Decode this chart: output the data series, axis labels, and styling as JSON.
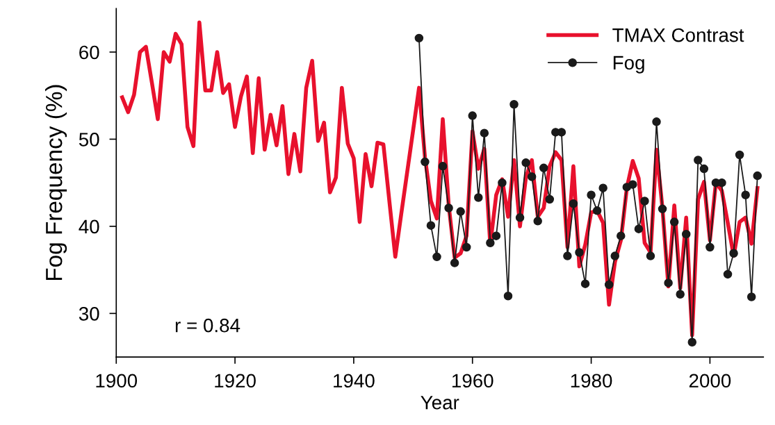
{
  "chart_data": {
    "type": "line",
    "xlabel": "Year",
    "ylabel": "Fog Frequency (%)",
    "xlim": [
      1900,
      2009
    ],
    "xticks": [
      1900,
      1920,
      1940,
      1960,
      1980,
      2000
    ],
    "ylim": [
      25,
      65
    ],
    "yticks": [
      30,
      40,
      50,
      60
    ],
    "legend": "top right",
    "annotations": [
      "r = 0.84"
    ],
    "series": [
      {
        "name": "TMAX Contrast",
        "color": "#e8112d",
        "marker": "none",
        "x": [
          1901,
          1902,
          1903,
          1904,
          1905,
          1906,
          1907,
          1908,
          1909,
          1910,
          1911,
          1912,
          1913,
          1914,
          1915,
          1916,
          1917,
          1918,
          1919,
          1920,
          1921,
          1922,
          1923,
          1924,
          1925,
          1926,
          1927,
          1928,
          1929,
          1930,
          1931,
          1932,
          1933,
          1934,
          1935,
          1936,
          1937,
          1938,
          1939,
          1940,
          1941,
          1942,
          1943,
          1944,
          1945,
          1946,
          1947,
          1948,
          1949,
          1950,
          1951,
          1952,
          1953,
          1954,
          1955,
          1956,
          1957,
          1958,
          1959,
          1960,
          1961,
          1962,
          1963,
          1964,
          1965,
          1966,
          1967,
          1968,
          1969,
          1970,
          1971,
          1972,
          1973,
          1974,
          1975,
          1976,
          1977,
          1978,
          1979,
          1980,
          1981,
          1982,
          1983,
          1984,
          1985,
          1986,
          1987,
          1988,
          1989,
          1990,
          1991,
          1992,
          1993,
          1994,
          1995,
          1996,
          1997,
          1998,
          1999,
          2000,
          2001,
          2002,
          2003,
          2004,
          2005,
          2006,
          2007,
          2008
        ],
        "values": [
          54.8,
          53.1,
          55.1,
          60.0,
          60.6,
          56.5,
          52.3,
          60.0,
          58.9,
          62.1,
          60.9,
          51.4,
          49.2,
          63.4,
          55.6,
          55.6,
          60.0,
          55.3,
          56.3,
          51.4,
          54.9,
          57.2,
          48.4,
          57.0,
          48.8,
          52.8,
          49.3,
          53.8,
          46.0,
          50.6,
          46.3,
          55.9,
          59.0,
          49.8,
          51.9,
          43.9,
          45.6,
          55.9,
          49.5,
          47.8,
          40.5,
          48.3,
          44.6,
          49.6,
          49.4,
          42.9,
          36.5,
          41.4,
          46.2,
          51.0,
          55.9,
          47.9,
          42.9,
          40.9,
          52.3,
          42.4,
          36.4,
          36.9,
          38.9,
          50.9,
          46.6,
          48.9,
          37.9,
          43.6,
          45.4,
          41.1,
          47.6,
          40.0,
          45.6,
          47.6,
          41.1,
          42.1,
          46.9,
          48.5,
          47.6,
          37.6,
          46.9,
          35.4,
          37.9,
          41.6,
          41.8,
          40.4,
          31.0,
          35.9,
          38.4,
          44.4,
          47.5,
          45.5,
          38.1,
          37.0,
          48.8,
          42.1,
          33.1,
          42.4,
          32.9,
          41.0,
          27.5,
          43.1,
          45.1,
          38.4,
          45.0,
          44.1,
          40.4,
          36.6,
          40.5,
          41.0,
          38.0,
          44.4
        ]
      },
      {
        "name": "Fog",
        "color": "#1a1a1a",
        "marker": "circle",
        "x": [
          1951,
          1952,
          1953,
          1954,
          1955,
          1956,
          1957,
          1958,
          1959,
          1960,
          1961,
          1962,
          1963,
          1964,
          1965,
          1966,
          1967,
          1968,
          1969,
          1970,
          1971,
          1972,
          1973,
          1974,
          1975,
          1976,
          1977,
          1978,
          1979,
          1980,
          1981,
          1982,
          1983,
          1984,
          1985,
          1986,
          1987,
          1988,
          1989,
          1990,
          1991,
          1992,
          1993,
          1994,
          1995,
          1996,
          1997,
          1998,
          1999,
          2000,
          2001,
          2002,
          2003,
          2004,
          2005,
          2006,
          2007,
          2008
        ],
        "values": [
          61.6,
          47.4,
          40.1,
          36.5,
          46.9,
          42.1,
          35.8,
          41.7,
          37.6,
          52.7,
          43.3,
          50.7,
          38.1,
          38.9,
          45.0,
          32.0,
          54.0,
          41.0,
          47.3,
          45.7,
          40.6,
          46.7,
          43.1,
          50.8,
          50.8,
          36.6,
          42.6,
          37.0,
          33.4,
          43.6,
          41.8,
          44.4,
          33.3,
          36.6,
          38.9,
          44.5,
          44.8,
          39.7,
          42.9,
          36.6,
          52.0,
          42.0,
          33.5,
          40.5,
          32.2,
          39.1,
          26.7,
          47.6,
          46.6,
          37.6,
          45.0,
          45.0,
          34.5,
          36.9,
          48.2,
          43.6,
          31.9,
          45.8
        ]
      }
    ]
  }
}
